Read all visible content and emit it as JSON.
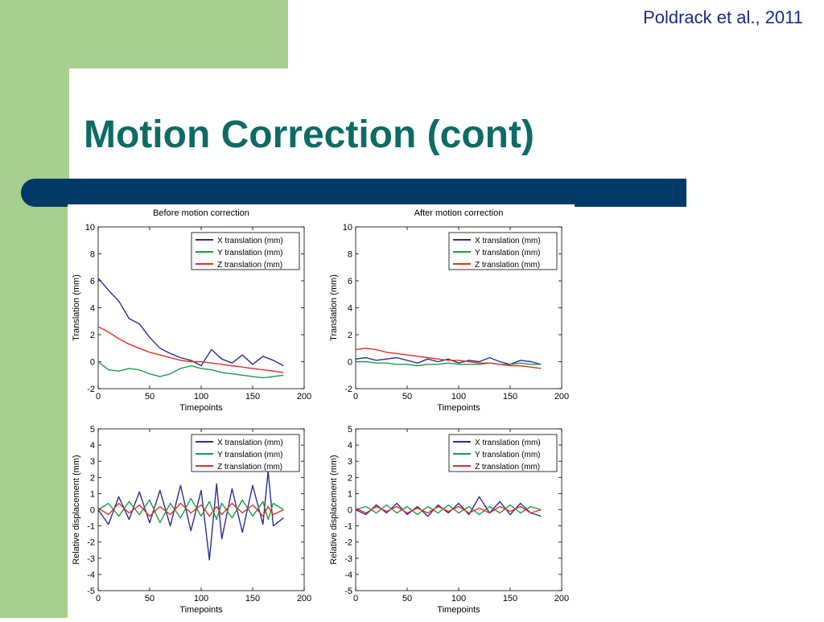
{
  "slide": {
    "citation": "Poldrack et al., 2011",
    "title": "Motion Correction (cont)"
  },
  "colors": {
    "green_band": "#a7d08f",
    "title": "#0e6b63",
    "accent_bar": "#003a66",
    "citation": "#1a2a8c",
    "series_x": "#2b2f8f",
    "series_y": "#1e9a4a",
    "series_z": "#e0312c"
  },
  "chart_data": [
    {
      "type": "line",
      "title": "Before motion correction",
      "xlabel": "Timepoints",
      "ylabel": "Translation (mm)",
      "xlim": [
        0,
        200
      ],
      "ylim": [
        -2,
        10
      ],
      "xticks": [
        0,
        50,
        100,
        150,
        200
      ],
      "yticks": [
        -2,
        0,
        2,
        4,
        6,
        8,
        10
      ],
      "legend": "top-right",
      "grid": false,
      "x": [
        0,
        10,
        20,
        30,
        40,
        50,
        60,
        70,
        80,
        90,
        100,
        110,
        120,
        130,
        140,
        150,
        160,
        170,
        180
      ],
      "series": [
        {
          "name": "X translation (mm)",
          "color": "#2b2f8f",
          "values": [
            6.2,
            5.3,
            4.5,
            3.2,
            2.8,
            1.8,
            1.0,
            0.6,
            0.3,
            0.1,
            -0.3,
            0.9,
            0.2,
            -0.1,
            0.5,
            -0.2,
            0.4,
            0.1,
            -0.3
          ]
        },
        {
          "name": "Y translation (mm)",
          "color": "#1e9a4a",
          "values": [
            0.0,
            -0.6,
            -0.7,
            -0.5,
            -0.6,
            -0.9,
            -1.1,
            -0.9,
            -0.5,
            -0.3,
            -0.5,
            -0.6,
            -0.8,
            -0.9,
            -1.0,
            -1.1,
            -1.2,
            -1.1,
            -1.0
          ]
        },
        {
          "name": "Z translation (mm)",
          "color": "#e0312c",
          "values": [
            2.6,
            2.2,
            1.7,
            1.3,
            1.0,
            0.7,
            0.5,
            0.3,
            0.1,
            0.0,
            0.0,
            -0.1,
            -0.2,
            -0.3,
            -0.4,
            -0.5,
            -0.6,
            -0.7,
            -0.8
          ]
        }
      ]
    },
    {
      "type": "line",
      "title": "After motion correction",
      "xlabel": "Timepoints",
      "ylabel": "Translation (mm)",
      "xlim": [
        0,
        200
      ],
      "ylim": [
        -2,
        10
      ],
      "xticks": [
        0,
        50,
        100,
        150,
        200
      ],
      "yticks": [
        -2,
        0,
        2,
        4,
        6,
        8,
        10
      ],
      "legend": "top-right",
      "grid": false,
      "x": [
        0,
        10,
        20,
        30,
        40,
        50,
        60,
        70,
        80,
        90,
        100,
        110,
        120,
        130,
        140,
        150,
        160,
        170,
        180
      ],
      "series": [
        {
          "name": "X translation (mm)",
          "color": "#2b2f8f",
          "values": [
            0.2,
            0.3,
            0.1,
            0.2,
            0.3,
            0.1,
            -0.1,
            0.2,
            0.0,
            0.2,
            -0.1,
            0.1,
            0.0,
            0.3,
            0.0,
            -0.2,
            0.1,
            0.0,
            -0.2
          ]
        },
        {
          "name": "Y translation (mm)",
          "color": "#1e9a4a",
          "values": [
            0.0,
            0.0,
            -0.1,
            -0.1,
            -0.2,
            -0.2,
            -0.3,
            -0.2,
            -0.2,
            -0.1,
            -0.2,
            -0.2,
            -0.2,
            -0.1,
            -0.2,
            -0.2,
            -0.1,
            -0.2,
            -0.2
          ]
        },
        {
          "name": "Z translation (mm)",
          "color": "#e0312c",
          "values": [
            0.9,
            1.0,
            0.9,
            0.7,
            0.6,
            0.5,
            0.4,
            0.3,
            0.2,
            0.1,
            0.1,
            0.0,
            -0.1,
            -0.1,
            -0.2,
            -0.3,
            -0.3,
            -0.4,
            -0.5
          ]
        }
      ]
    },
    {
      "type": "line",
      "title": "",
      "xlabel": "Timepoints",
      "ylabel": "Relative displacement (mm)",
      "xlim": [
        0,
        200
      ],
      "ylim": [
        -5,
        5
      ],
      "xticks": [
        0,
        50,
        100,
        150,
        200
      ],
      "yticks": [
        -5,
        -4,
        -3,
        -2,
        -1,
        0,
        1,
        2,
        3,
        4,
        5
      ],
      "legend": "top-right",
      "grid": false,
      "x": [
        0,
        10,
        20,
        30,
        40,
        50,
        60,
        70,
        80,
        90,
        100,
        108,
        115,
        120,
        130,
        140,
        150,
        160,
        165,
        170,
        180
      ],
      "series": [
        {
          "name": "X translation (mm)",
          "color": "#2b2f8f",
          "values": [
            0.0,
            -0.9,
            0.8,
            -0.6,
            1.1,
            -0.8,
            1.2,
            -1.0,
            1.5,
            -1.3,
            1.2,
            -3.1,
            1.6,
            -1.8,
            1.3,
            -1.4,
            1.5,
            -0.9,
            2.4,
            -1.0,
            -0.5
          ]
        },
        {
          "name": "Y translation (mm)",
          "color": "#1e9a4a",
          "values": [
            0.0,
            0.4,
            -0.4,
            0.5,
            -0.3,
            0.6,
            -0.8,
            0.4,
            -0.5,
            0.7,
            -0.4,
            0.5,
            -0.6,
            0.4,
            -0.5,
            0.6,
            -0.4,
            0.5,
            -0.6,
            0.4,
            0.0
          ]
        },
        {
          "name": "Z translation (mm)",
          "color": "#e0312c",
          "values": [
            0.1,
            -0.3,
            0.4,
            -0.2,
            0.3,
            -0.4,
            0.2,
            -0.3,
            0.4,
            -0.2,
            0.3,
            -0.4,
            0.2,
            -0.3,
            0.4,
            -0.2,
            0.3,
            -0.4,
            0.2,
            -0.3,
            0.0
          ]
        }
      ]
    },
    {
      "type": "line",
      "title": "",
      "xlabel": "Timepoints",
      "ylabel": "Relative displacement (mm)",
      "xlim": [
        0,
        200
      ],
      "ylim": [
        -5,
        5
      ],
      "xticks": [
        0,
        50,
        100,
        150,
        200
      ],
      "yticks": [
        -5,
        -4,
        -3,
        -2,
        -1,
        0,
        1,
        2,
        3,
        4,
        5
      ],
      "legend": "top-right",
      "grid": false,
      "x": [
        0,
        10,
        20,
        30,
        40,
        50,
        60,
        70,
        80,
        90,
        100,
        110,
        120,
        130,
        140,
        150,
        160,
        170,
        180
      ],
      "series": [
        {
          "name": "X translation (mm)",
          "color": "#2b2f8f",
          "values": [
            0.0,
            -0.3,
            0.3,
            -0.2,
            0.4,
            -0.3,
            0.2,
            -0.4,
            0.3,
            -0.2,
            0.4,
            -0.3,
            0.8,
            -0.2,
            0.5,
            -0.3,
            0.4,
            -0.2,
            -0.4
          ]
        },
        {
          "name": "Y translation (mm)",
          "color": "#1e9a4a",
          "values": [
            0.0,
            0.2,
            -0.2,
            0.3,
            -0.2,
            0.2,
            -0.3,
            0.2,
            -0.2,
            0.3,
            -0.2,
            0.2,
            -0.3,
            0.2,
            -0.2,
            0.3,
            -0.2,
            0.2,
            0.0
          ]
        },
        {
          "name": "Z translation (mm)",
          "color": "#e0312c",
          "values": [
            0.1,
            -0.2,
            0.2,
            -0.1,
            0.2,
            -0.2,
            0.1,
            -0.2,
            0.2,
            -0.1,
            0.2,
            -0.2,
            0.1,
            -0.2,
            0.2,
            -0.1,
            0.2,
            -0.2,
            0.0
          ]
        }
      ]
    }
  ]
}
